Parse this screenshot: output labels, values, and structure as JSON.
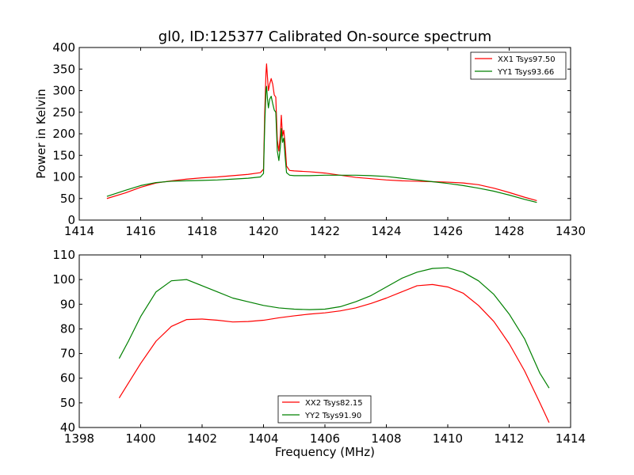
{
  "chart_data": [
    {
      "type": "line",
      "title": "gl0, ID:125377 Calibrated On-source spectrum",
      "xlabel": "",
      "ylabel": "Power in Kelvin",
      "xlim": [
        1414,
        1430
      ],
      "ylim": [
        0,
        400
      ],
      "xticks": [
        1414,
        1416,
        1418,
        1420,
        1422,
        1424,
        1426,
        1428,
        1430
      ],
      "yticks": [
        0,
        50,
        100,
        150,
        200,
        250,
        300,
        350,
        400
      ],
      "grid": false,
      "legend_position": "top-right",
      "series": [
        {
          "name": "XX1 Tsys97.50",
          "color": "#ff0000",
          "points": [
            [
              1414.9,
              50
            ],
            [
              1415.5,
              63
            ],
            [
              1416.0,
              76
            ],
            [
              1416.5,
              86
            ],
            [
              1417.0,
              91
            ],
            [
              1417.5,
              95
            ],
            [
              1418.0,
              98
            ],
            [
              1418.5,
              100
            ],
            [
              1419.0,
              103
            ],
            [
              1419.5,
              106
            ],
            [
              1419.9,
              110
            ],
            [
              1420.0,
              118
            ],
            [
              1420.04,
              250
            ],
            [
              1420.08,
              340
            ],
            [
              1420.1,
              362
            ],
            [
              1420.13,
              330
            ],
            [
              1420.16,
              300
            ],
            [
              1420.2,
              315
            ],
            [
              1420.25,
              328
            ],
            [
              1420.3,
              315
            ],
            [
              1420.35,
              290
            ],
            [
              1420.4,
              285
            ],
            [
              1420.45,
              185
            ],
            [
              1420.5,
              160
            ],
            [
              1420.55,
              200
            ],
            [
              1420.58,
              243
            ],
            [
              1420.62,
              195
            ],
            [
              1420.66,
              208
            ],
            [
              1420.7,
              180
            ],
            [
              1420.75,
              125
            ],
            [
              1420.85,
              115
            ],
            [
              1421.0,
              114
            ],
            [
              1421.5,
              112
            ],
            [
              1422.0,
              109
            ],
            [
              1422.5,
              104
            ],
            [
              1423.0,
              99
            ],
            [
              1423.5,
              96
            ],
            [
              1424.0,
              93
            ],
            [
              1424.5,
              91
            ],
            [
              1425.0,
              90
            ],
            [
              1425.5,
              89
            ],
            [
              1426.0,
              88
            ],
            [
              1426.5,
              86
            ],
            [
              1427.0,
              82
            ],
            [
              1427.5,
              74
            ],
            [
              1428.0,
              64
            ],
            [
              1428.5,
              53
            ],
            [
              1428.9,
              45
            ]
          ]
        },
        {
          "name": "YY1 Tsys93.66",
          "color": "#008000",
          "points": [
            [
              1414.9,
              55
            ],
            [
              1415.5,
              69
            ],
            [
              1416.0,
              80
            ],
            [
              1416.5,
              87
            ],
            [
              1417.0,
              90
            ],
            [
              1417.5,
              91
            ],
            [
              1418.0,
              92
            ],
            [
              1418.5,
              93
            ],
            [
              1419.0,
              95
            ],
            [
              1419.5,
              97
            ],
            [
              1419.9,
              100
            ],
            [
              1420.0,
              108
            ],
            [
              1420.04,
              220
            ],
            [
              1420.08,
              300
            ],
            [
              1420.1,
              310
            ],
            [
              1420.13,
              280
            ],
            [
              1420.16,
              260
            ],
            [
              1420.2,
              280
            ],
            [
              1420.25,
              287
            ],
            [
              1420.3,
              270
            ],
            [
              1420.35,
              255
            ],
            [
              1420.4,
              250
            ],
            [
              1420.45,
              160
            ],
            [
              1420.5,
              138
            ],
            [
              1420.55,
              170
            ],
            [
              1420.58,
              212
            ],
            [
              1420.62,
              180
            ],
            [
              1420.66,
              190
            ],
            [
              1420.7,
              150
            ],
            [
              1420.75,
              110
            ],
            [
              1420.85,
              104
            ],
            [
              1421.0,
              103
            ],
            [
              1421.5,
              103
            ],
            [
              1422.0,
              104
            ],
            [
              1422.5,
              104
            ],
            [
              1423.0,
              104
            ],
            [
              1423.5,
              103
            ],
            [
              1424.0,
              101
            ],
            [
              1424.5,
              97
            ],
            [
              1425.0,
              93
            ],
            [
              1425.5,
              89
            ],
            [
              1426.0,
              85
            ],
            [
              1426.5,
              80
            ],
            [
              1427.0,
              74
            ],
            [
              1427.5,
              67
            ],
            [
              1428.0,
              58
            ],
            [
              1428.5,
              48
            ],
            [
              1428.9,
              41
            ]
          ]
        }
      ]
    },
    {
      "type": "line",
      "title": "",
      "xlabel": "Frequency (MHz)",
      "ylabel": "",
      "xlim": [
        1398,
        1414
      ],
      "ylim": [
        40,
        110
      ],
      "xticks": [
        1398,
        1400,
        1402,
        1404,
        1406,
        1408,
        1410,
        1412,
        1414
      ],
      "yticks": [
        40,
        50,
        60,
        70,
        80,
        90,
        100,
        110
      ],
      "grid": false,
      "legend_position": "bottom-center",
      "series": [
        {
          "name": "XX2 Tsys82.15",
          "color": "#ff0000",
          "points": [
            [
              1399.3,
              52
            ],
            [
              1399.6,
              58
            ],
            [
              1400.0,
              66
            ],
            [
              1400.5,
              75
            ],
            [
              1401.0,
              81
            ],
            [
              1401.5,
              83.8
            ],
            [
              1402.0,
              84
            ],
            [
              1402.5,
              83.5
            ],
            [
              1403.0,
              82.8
            ],
            [
              1403.5,
              83
            ],
            [
              1404.0,
              83.5
            ],
            [
              1404.5,
              84.5
            ],
            [
              1405.0,
              85.3
            ],
            [
              1405.5,
              86
            ],
            [
              1406.0,
              86.5
            ],
            [
              1406.5,
              87.3
            ],
            [
              1407.0,
              88.5
            ],
            [
              1407.5,
              90.3
            ],
            [
              1408.0,
              92.5
            ],
            [
              1408.5,
              95
            ],
            [
              1409.0,
              97.5
            ],
            [
              1409.5,
              98
            ],
            [
              1410.0,
              97
            ],
            [
              1410.5,
              94.5
            ],
            [
              1411.0,
              89.5
            ],
            [
              1411.5,
              83
            ],
            [
              1412.0,
              74
            ],
            [
              1412.5,
              63
            ],
            [
              1413.0,
              50
            ],
            [
              1413.3,
              42
            ]
          ]
        },
        {
          "name": "YY2 Tsys91.90",
          "color": "#008000",
          "points": [
            [
              1399.3,
              68
            ],
            [
              1399.6,
              75
            ],
            [
              1400.0,
              85
            ],
            [
              1400.5,
              95
            ],
            [
              1401.0,
              99.5
            ],
            [
              1401.5,
              100
            ],
            [
              1402.0,
              97.5
            ],
            [
              1402.5,
              95
            ],
            [
              1403.0,
              92.5
            ],
            [
              1403.5,
              91
            ],
            [
              1404.0,
              89.5
            ],
            [
              1404.5,
              88.5
            ],
            [
              1405.0,
              88
            ],
            [
              1405.5,
              87.8
            ],
            [
              1406.0,
              88
            ],
            [
              1406.5,
              89
            ],
            [
              1407.0,
              91
            ],
            [
              1407.5,
              93.5
            ],
            [
              1408.0,
              97
            ],
            [
              1408.5,
              100.5
            ],
            [
              1409.0,
              103
            ],
            [
              1409.5,
              104.5
            ],
            [
              1410.0,
              104.8
            ],
            [
              1410.5,
              103
            ],
            [
              1411.0,
              99.5
            ],
            [
              1411.5,
              94
            ],
            [
              1412.0,
              86
            ],
            [
              1412.5,
              76
            ],
            [
              1413.0,
              62
            ],
            [
              1413.3,
              56
            ]
          ]
        }
      ]
    }
  ]
}
